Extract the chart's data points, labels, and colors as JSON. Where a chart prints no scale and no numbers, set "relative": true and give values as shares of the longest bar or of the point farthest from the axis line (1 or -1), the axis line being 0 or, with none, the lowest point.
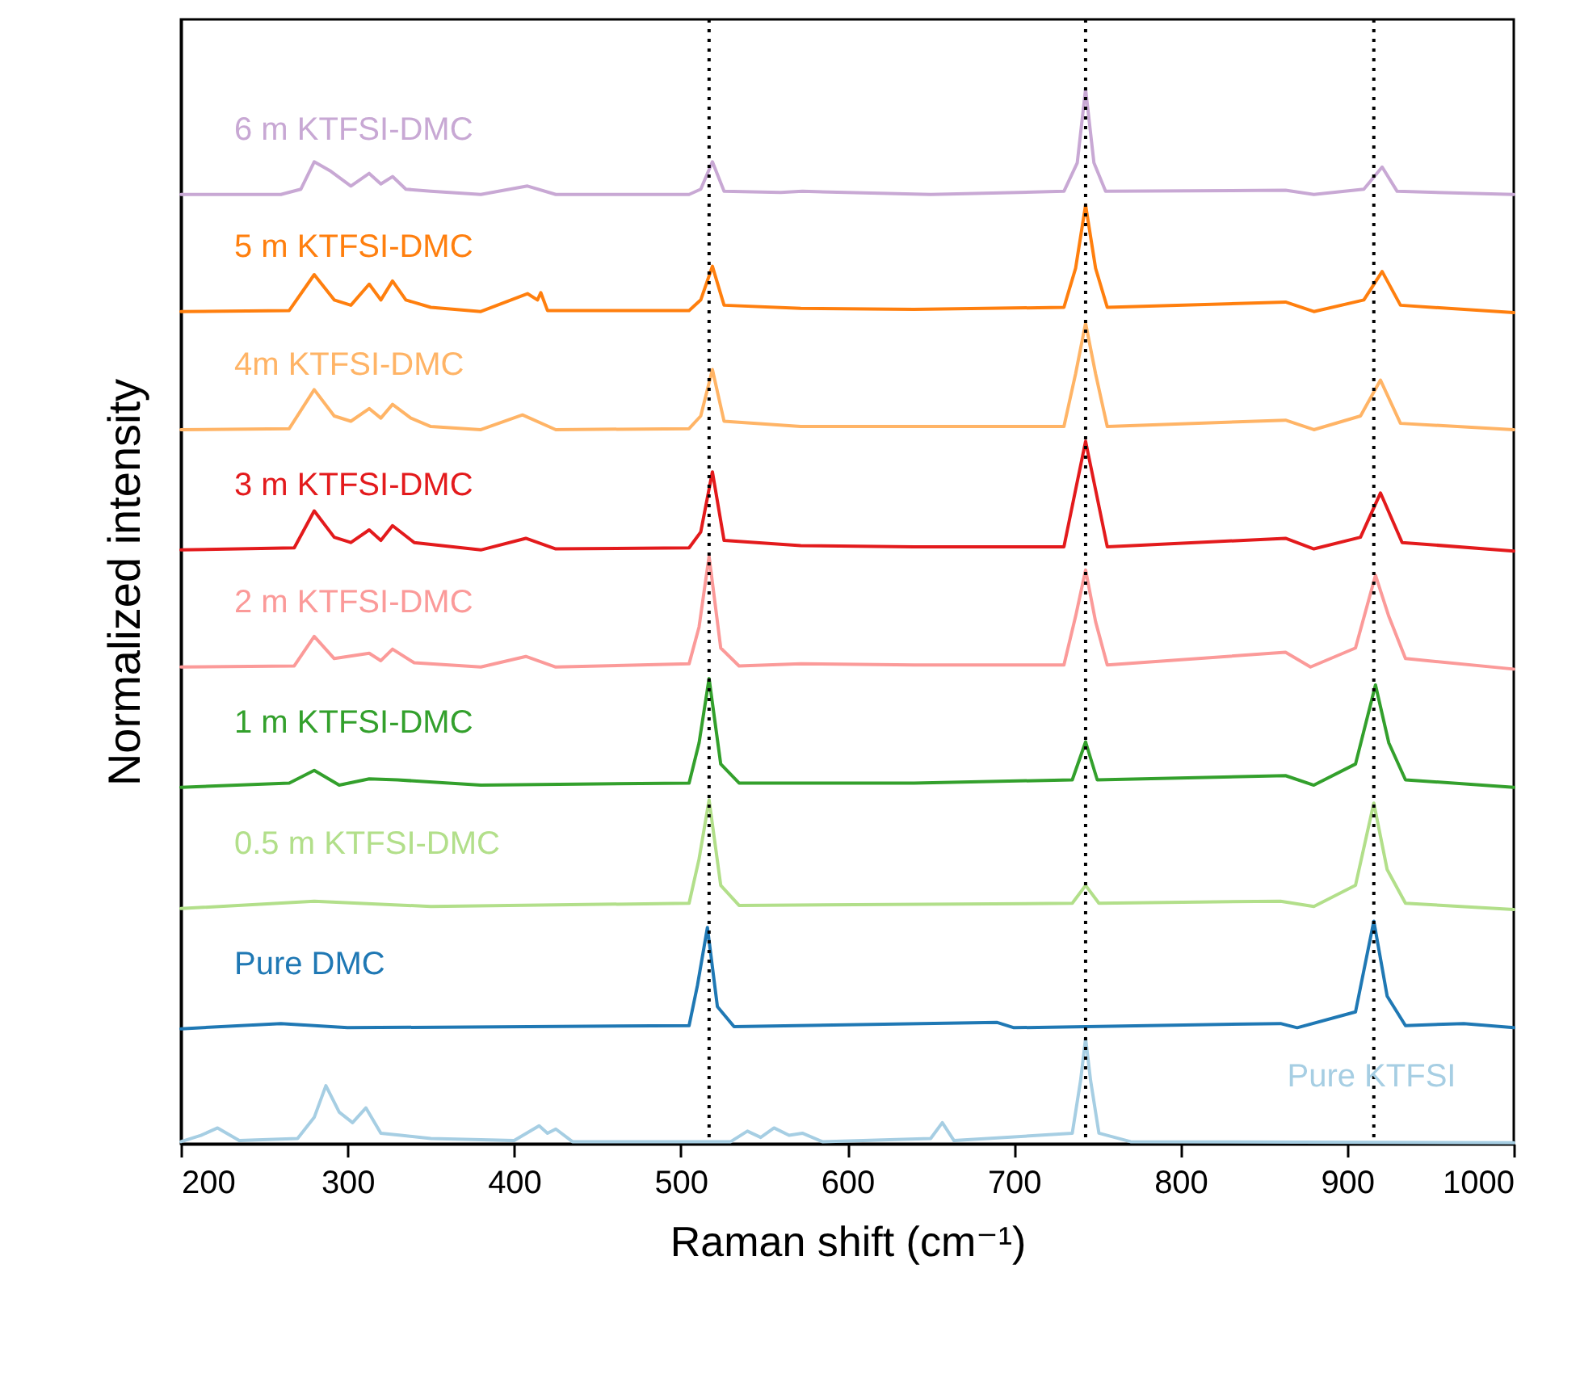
{
  "chart_data": {
    "type": "line",
    "relative": true,
    "xlabel": "Raman shift (cm⁻¹)",
    "ylabel": "Normalized intensity",
    "xlim": [
      200,
      1000
    ],
    "xticks": [
      200,
      300,
      400,
      500,
      600,
      700,
      800,
      900,
      1000
    ],
    "line_style": "solid",
    "marker": "none",
    "ref_lines": [
      {
        "axis": "x",
        "value": 517,
        "color": "#000000",
        "line_style": "dotted"
      },
      {
        "axis": "x",
        "value": 743,
        "color": "#000000",
        "line_style": "dotted"
      },
      {
        "axis": "x",
        "value": 916,
        "color": "#000000",
        "line_style": "dotted"
      }
    ],
    "series": [
      {
        "name": "6 m KTFSI-DMC",
        "color": "#c8a8d4",
        "x": [
          200,
          260,
          272,
          280,
          290,
          302,
          313,
          320,
          327,
          335,
          350,
          380,
          408,
          425,
          505,
          512,
          519,
          526,
          560,
          573,
          650,
          730,
          738,
          743,
          748,
          755,
          863,
          880,
          910,
          921,
          930,
          1000
        ],
        "values": [
          0.9,
          0.9,
          0.905,
          0.931,
          0.922,
          0.908,
          0.92,
          0.91,
          0.917,
          0.905,
          0.903,
          0.9,
          0.908,
          0.9,
          0.9,
          0.905,
          0.931,
          0.903,
          0.902,
          0.903,
          0.9,
          0.903,
          0.93,
          1.0,
          0.93,
          0.903,
          0.904,
          0.9,
          0.905,
          0.926,
          0.903,
          0.9
        ]
      },
      {
        "name": "5 m KTFSI-DMC",
        "color": "#ff7f0e",
        "x": [
          200,
          265,
          280,
          292,
          302,
          313,
          320,
          327,
          335,
          350,
          380,
          408,
          414,
          416,
          420,
          505,
          512,
          519,
          526,
          572,
          640,
          730,
          737,
          743,
          749,
          756,
          863,
          880,
          910,
          921,
          932,
          1000
        ],
        "values": [
          0.789,
          0.79,
          0.824,
          0.8,
          0.795,
          0.815,
          0.8,
          0.818,
          0.8,
          0.793,
          0.789,
          0.806,
          0.8,
          0.807,
          0.79,
          0.79,
          0.8,
          0.832,
          0.795,
          0.792,
          0.791,
          0.793,
          0.83,
          0.89,
          0.83,
          0.793,
          0.798,
          0.789,
          0.8,
          0.827,
          0.795,
          0.788
        ]
      },
      {
        "name": "4m KTFSI-DMC",
        "color": "#ffb466",
        "x": [
          200,
          265,
          280,
          292,
          302,
          313,
          320,
          327,
          338,
          350,
          380,
          405,
          425,
          505,
          512,
          519,
          526,
          572,
          730,
          737,
          743,
          749,
          756,
          863,
          880,
          908,
          920,
          932,
          1000
        ],
        "values": [
          0.677,
          0.678,
          0.715,
          0.69,
          0.685,
          0.697,
          0.688,
          0.701,
          0.688,
          0.68,
          0.677,
          0.691,
          0.677,
          0.678,
          0.69,
          0.734,
          0.685,
          0.68,
          0.68,
          0.73,
          0.778,
          0.73,
          0.68,
          0.686,
          0.677,
          0.69,
          0.724,
          0.683,
          0.677
        ]
      },
      {
        "name": "3 m KTFSI-DMC",
        "color": "#e31a1c",
        "x": [
          200,
          268,
          280,
          292,
          302,
          313,
          320,
          327,
          340,
          380,
          407,
          425,
          505,
          512,
          519,
          526,
          572,
          640,
          730,
          737,
          743,
          749,
          756,
          863,
          880,
          908,
          920,
          933,
          1000
        ],
        "values": [
          0.563,
          0.565,
          0.6,
          0.575,
          0.57,
          0.582,
          0.572,
          0.586,
          0.57,
          0.563,
          0.574,
          0.564,
          0.565,
          0.58,
          0.637,
          0.572,
          0.567,
          0.566,
          0.566,
          0.62,
          0.666,
          0.62,
          0.566,
          0.574,
          0.564,
          0.575,
          0.617,
          0.57,
          0.562
        ]
      },
      {
        "name": "2 m KTFSI-DMC",
        "color": "#fb9a99",
        "x": [
          200,
          268,
          280,
          292,
          313,
          320,
          327,
          340,
          380,
          407,
          425,
          505,
          511,
          517,
          524,
          535,
          572,
          640,
          730,
          737,
          743,
          749,
          756,
          863,
          878,
          905,
          917,
          925,
          935,
          1000
        ],
        "values": [
          0.452,
          0.453,
          0.481,
          0.46,
          0.465,
          0.458,
          0.469,
          0.456,
          0.452,
          0.462,
          0.452,
          0.455,
          0.49,
          0.557,
          0.47,
          0.453,
          0.455,
          0.454,
          0.454,
          0.5,
          0.544,
          0.495,
          0.454,
          0.466,
          0.452,
          0.47,
          0.539,
          0.5,
          0.46,
          0.45
        ]
      },
      {
        "name": "1 m KTFSI-DMC",
        "color": "#33a02c",
        "x": [
          200,
          265,
          280,
          295,
          313,
          330,
          380,
          505,
          511,
          517,
          524,
          535,
          640,
          735,
          743,
          750,
          863,
          880,
          905,
          917,
          925,
          935,
          1000
        ],
        "values": [
          0.338,
          0.342,
          0.354,
          0.34,
          0.346,
          0.345,
          0.34,
          0.342,
          0.38,
          0.441,
          0.36,
          0.342,
          0.342,
          0.345,
          0.381,
          0.345,
          0.349,
          0.34,
          0.36,
          0.435,
          0.38,
          0.345,
          0.338
        ]
      },
      {
        "name": "0.5 m KTFSI-DMC",
        "color": "#b2df8a",
        "x": [
          200,
          280,
          350,
          505,
          511,
          517,
          524,
          535,
          735,
          743,
          751,
          860,
          880,
          905,
          916,
          924,
          935,
          1000
        ],
        "values": [
          0.223,
          0.23,
          0.225,
          0.228,
          0.27,
          0.326,
          0.245,
          0.226,
          0.228,
          0.245,
          0.228,
          0.23,
          0.225,
          0.245,
          0.323,
          0.26,
          0.228,
          0.222
        ]
      },
      {
        "name": "Pure DMC",
        "color": "#1f78b4",
        "x": [
          200,
          260,
          300,
          505,
          510,
          516,
          522,
          532,
          690,
          700,
          860,
          870,
          905,
          916,
          924,
          935,
          970,
          1000
        ],
        "values": [
          0.109,
          0.114,
          0.11,
          0.112,
          0.15,
          0.205,
          0.13,
          0.111,
          0.115,
          0.11,
          0.114,
          0.11,
          0.125,
          0.211,
          0.14,
          0.112,
          0.114,
          0.11
        ]
      },
      {
        "name": "Pure KTFSI",
        "color": "#a6cee3",
        "x": [
          200,
          212,
          222,
          235,
          270,
          280,
          287,
          295,
          303,
          311,
          320,
          332,
          350,
          400,
          415,
          420,
          425,
          435,
          530,
          540,
          548,
          556,
          565,
          573,
          585,
          650,
          657,
          664,
          735,
          740,
          743,
          746,
          751,
          770,
          1000
        ],
        "values": [
          0.002,
          0.008,
          0.015,
          0.003,
          0.005,
          0.025,
          0.055,
          0.03,
          0.02,
          0.034,
          0.01,
          0.008,
          0.005,
          0.003,
          0.017,
          0.01,
          0.014,
          0.002,
          0.002,
          0.012,
          0.006,
          0.015,
          0.008,
          0.01,
          0.002,
          0.005,
          0.02,
          0.003,
          0.01,
          0.06,
          0.1,
          0.06,
          0.01,
          0.002,
          0.001
        ]
      }
    ]
  }
}
